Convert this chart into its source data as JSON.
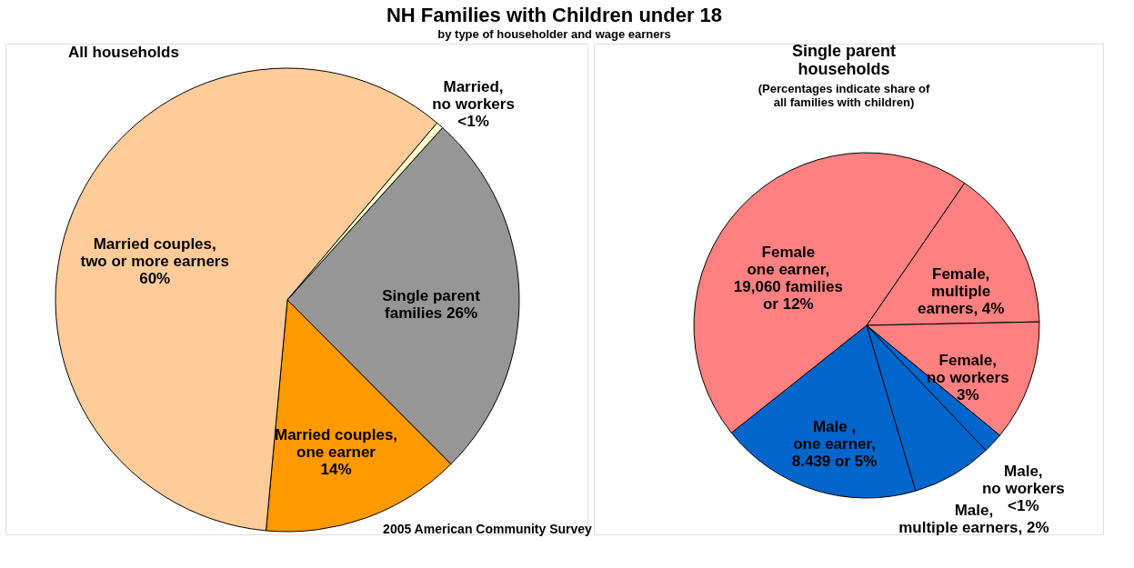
{
  "chart_data": [
    {
      "type": "pie",
      "title": "NH Families with Children under 18",
      "subtitle": "by type of householder and wage earners",
      "annotations": [
        "All households",
        "2005 American Community Survey"
      ],
      "categories": [
        "Single parent\nfamilies  26%",
        "Married couples,\none earner\n14%",
        "Married couples,\ntwo or more earners\n60%",
        "Married,\nno workers\n<1%"
      ],
      "values": [
        26,
        14,
        60,
        0.5
      ],
      "colors": [
        "#969696",
        "#ff9900",
        "#ffcc99",
        "#ffffcc"
      ]
    },
    {
      "type": "pie",
      "title": "Single parent\nhouseholds",
      "subtitle": "(Percentages indicate share of\nall families with children)",
      "categories": [
        "Female,\nmultiple\nearners, 4%",
        "Female,\nno workers\n3%",
        "Male,\nno workers\n<1%",
        "Male,\nmultiple earners, 2%",
        "Male ,\none earner,\n8.439 or  5%",
        "Female\none earner,\n19,060 families\nor 12%"
      ],
      "values": [
        4,
        3,
        0.5,
        2,
        5,
        12
      ],
      "colors": [
        "#ff8080",
        "#ff8080",
        "#0066cc",
        "#0066cc",
        "#0066cc",
        "#ff8080"
      ]
    }
  ]
}
